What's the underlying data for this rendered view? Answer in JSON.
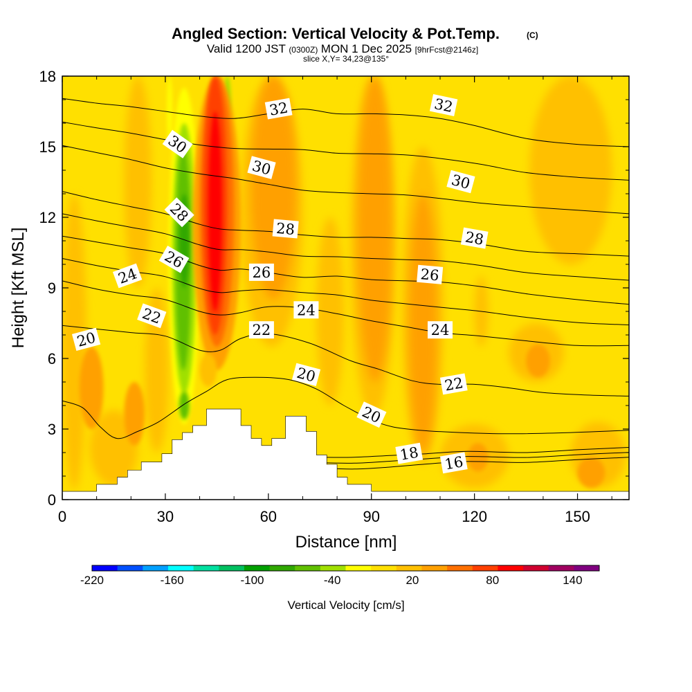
{
  "header": {
    "title": "Angled Section: Vertical Velocity & Pot.Temp.",
    "title_suffix": "(C)",
    "valid_prefix": "Valid 1200 JST",
    "valid_zulu": "(0300Z)",
    "valid_date": "MON 1 Dec 2025",
    "valid_forecast": "[9hrFcst@2146z]",
    "slice_info": "slice X,Y= 34,23@135°"
  },
  "chart_data": {
    "type": "heatmap",
    "title": "Angled Section: Vertical Velocity & Pot.Temp. (C)",
    "xlabel": "Distance [nm]",
    "ylabel": "Height [Kft MSL]",
    "xlim": [
      0,
      165
    ],
    "ylim": [
      0,
      18
    ],
    "x_ticks": [
      "0",
      "30",
      "60",
      "90",
      "120",
      "150"
    ],
    "y_ticks": [
      "0",
      "3",
      "6",
      "9",
      "12",
      "15",
      "18"
    ],
    "colorbar": {
      "title": "Vertical Velocity [cm/s]",
      "tick_labels": [
        "-220",
        "-160",
        "-100",
        "-40",
        "20",
        "80",
        "140"
      ],
      "tick_values": [
        -220,
        -160,
        -100,
        -40,
        20,
        80,
        140
      ],
      "min": -220,
      "max": 160,
      "step": 20,
      "colors": [
        "#0000ff",
        "#0050ff",
        "#00a0ff",
        "#00ffff",
        "#00e0a0",
        "#00c060",
        "#00a000",
        "#30a800",
        "#60c000",
        "#a0e000",
        "#ffff00",
        "#ffe000",
        "#ffc000",
        "#ffa000",
        "#ff7000",
        "#ff4000",
        "#ff0000",
        "#d00030",
        "#a00060",
        "#800080"
      ]
    },
    "terrain": [
      [
        0,
        0.35
      ],
      [
        10,
        0.35
      ],
      [
        10,
        0.65
      ],
      [
        16,
        0.65
      ],
      [
        16,
        0.95
      ],
      [
        19,
        0.95
      ],
      [
        19,
        1.25
      ],
      [
        23,
        1.25
      ],
      [
        23,
        1.6
      ],
      [
        29,
        1.6
      ],
      [
        29,
        1.95
      ],
      [
        32,
        1.95
      ],
      [
        32,
        2.55
      ],
      [
        35,
        2.55
      ],
      [
        35,
        2.85
      ],
      [
        38,
        2.85
      ],
      [
        38,
        3.15
      ],
      [
        42,
        3.15
      ],
      [
        42,
        3.85
      ],
      [
        52,
        3.85
      ],
      [
        52,
        3.15
      ],
      [
        55,
        3.15
      ],
      [
        55,
        2.6
      ],
      [
        58,
        2.6
      ],
      [
        58,
        2.3
      ],
      [
        61,
        2.3
      ],
      [
        61,
        2.6
      ],
      [
        65,
        2.6
      ],
      [
        65,
        3.55
      ],
      [
        71,
        3.55
      ],
      [
        71,
        2.9
      ],
      [
        74,
        2.9
      ],
      [
        74,
        1.9
      ],
      [
        77,
        1.9
      ],
      [
        77,
        1.5
      ],
      [
        80,
        1.5
      ],
      [
        80,
        0.95
      ],
      [
        83,
        0.95
      ],
      [
        83,
        0.65
      ],
      [
        90,
        0.65
      ],
      [
        90,
        0.35
      ],
      [
        165,
        0.35
      ]
    ],
    "vertical_velocity_features": [
      {
        "name": "updraft-core",
        "x_range": [
          40,
          50
        ],
        "z_range": [
          6,
          18
        ],
        "peak_cm_s": 100
      },
      {
        "name": "downdraft-band",
        "x_range": [
          31,
          40
        ],
        "z_range": [
          3.5,
          17
        ],
        "peak_cm_s": -80
      },
      {
        "name": "updraft-secondary",
        "x_range": [
          52,
          70
        ],
        "z_range": [
          7,
          18
        ],
        "peak_cm_s": 40
      },
      {
        "name": "updraft-tertiary",
        "x_range": [
          84,
          97
        ],
        "z_range": [
          4,
          18
        ],
        "peak_cm_s": 40
      },
      {
        "name": "updraft-mid",
        "x_range": [
          100,
          110
        ],
        "z_range": [
          2,
          14
        ],
        "peak_cm_s": 40
      },
      {
        "name": "updraft-low-west",
        "x_range": [
          3,
          12
        ],
        "z_range": [
          3,
          6
        ],
        "peak_cm_s": 40
      }
    ],
    "potential_temperature_contours_c": [
      {
        "value": 16,
        "points": [
          [
            73,
            1.35
          ],
          [
            85,
            1.3
          ],
          [
            95,
            1.38
          ],
          [
            105,
            1.5
          ],
          [
            118,
            1.62
          ],
          [
            135,
            1.58
          ],
          [
            150,
            1.7
          ],
          [
            165,
            1.8
          ]
        ]
      },
      {
        "value": 18,
        "points": [
          [
            75,
            1.8
          ],
          [
            85,
            1.8
          ],
          [
            96,
            1.88
          ],
          [
            106,
            1.95
          ],
          [
            118,
            2.05
          ],
          [
            135,
            2.0
          ],
          [
            150,
            2.12
          ],
          [
            165,
            2.22
          ]
        ]
      },
      {
        "value": 20,
        "points": [
          [
            0,
            4.2
          ],
          [
            6,
            3.9
          ],
          [
            11,
            3.1
          ],
          [
            16,
            2.6
          ],
          [
            22,
            2.9
          ],
          [
            28,
            3.3
          ],
          [
            36,
            4.1
          ],
          [
            42,
            4.6
          ],
          [
            48,
            5.1
          ],
          [
            56,
            5.2
          ],
          [
            66,
            5.1
          ],
          [
            74,
            4.7
          ],
          [
            82,
            4.0
          ],
          [
            90,
            3.4
          ],
          [
            96,
            3.1
          ],
          [
            104,
            2.95
          ],
          [
            116,
            2.85
          ],
          [
            130,
            2.8
          ],
          [
            148,
            2.85
          ],
          [
            165,
            2.95
          ]
        ]
      },
      {
        "value": 22,
        "points": [
          [
            0,
            7.4
          ],
          [
            10,
            7.25
          ],
          [
            20,
            7.1
          ],
          [
            30,
            6.95
          ],
          [
            40,
            6.35
          ],
          [
            46,
            6.35
          ],
          [
            52,
            6.85
          ],
          [
            60,
            7.05
          ],
          [
            72,
            6.65
          ],
          [
            84,
            5.9
          ],
          [
            92,
            5.55
          ],
          [
            102,
            5.05
          ],
          [
            110,
            4.9
          ],
          [
            120,
            4.9
          ],
          [
            130,
            4.75
          ],
          [
            140,
            4.55
          ],
          [
            152,
            4.45
          ],
          [
            165,
            4.4
          ]
        ]
      },
      {
        "value": 24,
        "points": [
          [
            0,
            9.3
          ],
          [
            10,
            8.95
          ],
          [
            20,
            8.7
          ],
          [
            30,
            8.5
          ],
          [
            40,
            8.0
          ],
          [
            46,
            7.85
          ],
          [
            52,
            7.95
          ],
          [
            60,
            8.2
          ],
          [
            70,
            8.15
          ],
          [
            80,
            7.9
          ],
          [
            90,
            7.6
          ],
          [
            100,
            7.35
          ],
          [
            110,
            7.1
          ],
          [
            122,
            6.95
          ],
          [
            135,
            6.75
          ],
          [
            150,
            6.55
          ],
          [
            165,
            6.55
          ]
        ]
      },
      {
        "value": 26,
        "points": [
          [
            0,
            11.2
          ],
          [
            10,
            10.95
          ],
          [
            20,
            10.7
          ],
          [
            30,
            10.45
          ],
          [
            40,
            9.95
          ],
          [
            46,
            9.75
          ],
          [
            52,
            9.8
          ],
          [
            60,
            9.65
          ],
          [
            70,
            9.45
          ],
          [
            80,
            9.5
          ],
          [
            90,
            9.35
          ],
          [
            100,
            9.3
          ],
          [
            110,
            9.25
          ],
          [
            122,
            9.05
          ],
          [
            135,
            8.75
          ],
          [
            150,
            8.5
          ],
          [
            165,
            8.3
          ]
        ]
      },
      {
        "value": 28,
        "points": [
          [
            0,
            13.1
          ],
          [
            10,
            12.75
          ],
          [
            20,
            12.45
          ],
          [
            30,
            12.15
          ],
          [
            40,
            11.7
          ],
          [
            46,
            11.5
          ],
          [
            52,
            11.45
          ],
          [
            60,
            11.4
          ],
          [
            70,
            11.25
          ],
          [
            80,
            11.15
          ],
          [
            90,
            11.15
          ],
          [
            100,
            11.1
          ],
          [
            110,
            11.05
          ],
          [
            122,
            10.85
          ],
          [
            135,
            10.55
          ],
          [
            150,
            10.45
          ],
          [
            165,
            10.35
          ]
        ]
      },
      {
        "value": 30,
        "points": [
          [
            0,
            15.05
          ],
          [
            10,
            14.75
          ],
          [
            20,
            14.45
          ],
          [
            30,
            14.1
          ],
          [
            40,
            13.85
          ],
          [
            50,
            13.65
          ],
          [
            60,
            13.4
          ],
          [
            70,
            13.15
          ],
          [
            80,
            13.05
          ],
          [
            90,
            13.0
          ],
          [
            100,
            12.95
          ],
          [
            110,
            12.8
          ],
          [
            122,
            12.6
          ],
          [
            135,
            12.45
          ],
          [
            150,
            12.3
          ],
          [
            165,
            12.15
          ]
        ]
      },
      {
        "value": 32,
        "points": [
          [
            0,
            17.05
          ],
          [
            10,
            16.85
          ],
          [
            20,
            16.7
          ],
          [
            30,
            16.5
          ],
          [
            40,
            16.3
          ],
          [
            50,
            16.2
          ],
          [
            60,
            16.4
          ],
          [
            70,
            16.6
          ],
          [
            80,
            16.4
          ],
          [
            90,
            16.4
          ],
          [
            100,
            16.35
          ],
          [
            110,
            16.2
          ],
          [
            120,
            15.9
          ],
          [
            135,
            15.35
          ],
          [
            150,
            15.1
          ],
          [
            165,
            15.0
          ]
        ]
      }
    ],
    "contour_labels": [
      {
        "text": "32",
        "x": 63,
        "z": 16.6,
        "angle": -10
      },
      {
        "text": "32",
        "x": 111,
        "z": 16.75,
        "angle": 12
      },
      {
        "text": "30",
        "x": 33.5,
        "z": 15.1,
        "angle": 35
      },
      {
        "text": "30",
        "x": 58,
        "z": 14.1,
        "angle": 15
      },
      {
        "text": "30",
        "x": 116,
        "z": 13.5,
        "angle": 15
      },
      {
        "text": "28",
        "x": 34,
        "z": 12.2,
        "angle": 45
      },
      {
        "text": "28",
        "x": 65,
        "z": 11.5,
        "angle": 5
      },
      {
        "text": "28",
        "x": 120,
        "z": 11.1,
        "angle": 10
      },
      {
        "text": "26",
        "x": 32.5,
        "z": 10.2,
        "angle": 30
      },
      {
        "text": "26",
        "x": 58,
        "z": 9.65,
        "angle": 0
      },
      {
        "text": "26",
        "x": 107,
        "z": 9.55,
        "angle": 5
      },
      {
        "text": "24",
        "x": 19,
        "z": 9.5,
        "angle": -20
      },
      {
        "text": "24",
        "x": 71,
        "z": 8.05,
        "angle": 0
      },
      {
        "text": "24",
        "x": 110,
        "z": 7.2,
        "angle": 0
      },
      {
        "text": "22",
        "x": 26,
        "z": 7.8,
        "angle": 20
      },
      {
        "text": "22",
        "x": 58,
        "z": 7.2,
        "angle": 0
      },
      {
        "text": "22",
        "x": 114,
        "z": 4.9,
        "angle": -10
      },
      {
        "text": "20",
        "x": 7,
        "z": 6.8,
        "angle": -15
      },
      {
        "text": "20",
        "x": 71,
        "z": 5.3,
        "angle": 15
      },
      {
        "text": "20",
        "x": 90,
        "z": 3.6,
        "angle": 25
      },
      {
        "text": "18",
        "x": 101,
        "z": 1.95,
        "angle": -10
      },
      {
        "text": "16",
        "x": 114,
        "z": 1.55,
        "angle": -10
      }
    ]
  }
}
